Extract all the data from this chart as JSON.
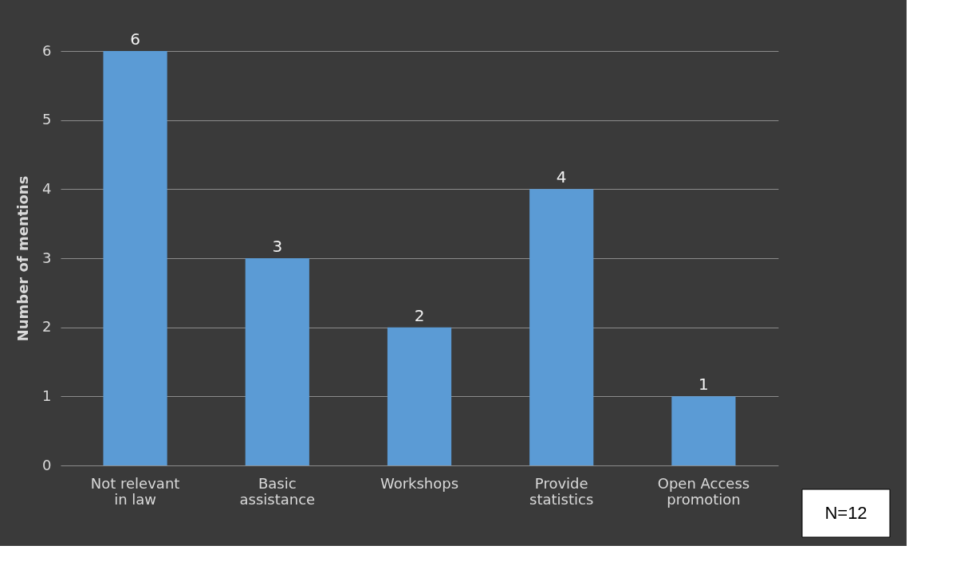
{
  "chart_data": {
    "type": "bar",
    "ylabel": "Number of mentions",
    "categories": [
      "Not relevant\nin law",
      "Basic\nassistance",
      "Workshops",
      "Provide\nstatistics",
      "Open Access\npromotion"
    ],
    "values": [
      6,
      3,
      2,
      4,
      1
    ],
    "color": "#5b9bd5",
    "ylim": [
      0,
      6
    ],
    "yticks": [
      0,
      1,
      2,
      3,
      4,
      5,
      6
    ],
    "grid": "y",
    "data_labels": true,
    "annotations": [
      "N=12"
    ]
  }
}
